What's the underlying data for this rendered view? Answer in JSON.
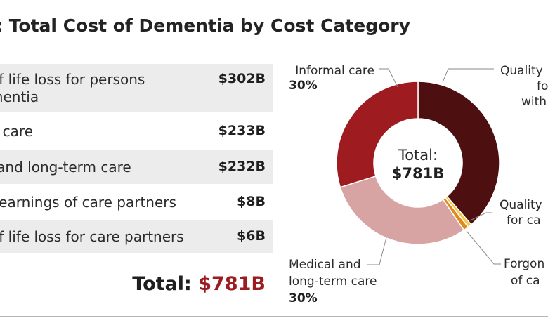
{
  "title": ": Total Cost of Dementia by Cost Category",
  "colors": {
    "quality_life_persons": "#4e0f10",
    "quality_life_partners": "#f4c84a",
    "forgone_earnings": "#e08a1e",
    "medical_longterm": "#d8a3a3",
    "informal_care": "#9e1b1f",
    "total_accent": "#9b1d20"
  },
  "table": {
    "rows": [
      {
        "label_lines": [
          "ty of life loss for persons",
          "dementia"
        ],
        "value": "$302B"
      },
      {
        "label_lines": [
          "mal care"
        ],
        "value": "$233B"
      },
      {
        "label_lines": [
          "cal and long-term care"
        ],
        "value": "$232B"
      },
      {
        "label_lines": [
          "me earnings of care partners"
        ],
        "value": "$8B"
      },
      {
        "label_lines": [
          "ty of life loss for care partners"
        ],
        "value": "$6B"
      }
    ],
    "total_prefix": "Total:",
    "total_value": "$781B"
  },
  "donut": {
    "center_label": "Total:",
    "center_value": "$781B",
    "callouts": [
      {
        "lines": [
          "Informal care"
        ],
        "pct": "30%"
      },
      {
        "lines": [
          "Quality",
          "fo",
          "with"
        ],
        "pct": ""
      },
      {
        "lines": [
          "Quality",
          "for ca"
        ],
        "pct": ""
      },
      {
        "lines": [
          "Forgon",
          "of ca"
        ],
        "pct": ""
      },
      {
        "lines": [
          "Medical and",
          "long-term care"
        ],
        "pct": "30%"
      }
    ]
  },
  "chart_data": {
    "type": "pie",
    "title": ": Total Cost of Dementia by Cost Category",
    "unit": "$B",
    "total": 781,
    "categories": [
      "Quality of life loss for persons with dementia",
      "Quality of life loss for care partners",
      "Forgone earnings of care partners",
      "Medical and long-term care",
      "Informal care"
    ],
    "values": [
      302,
      6,
      8,
      232,
      233
    ],
    "percent_labels": {
      "Informal care": "30%",
      "Medical and long-term care": "30%"
    },
    "legend": "callouts"
  }
}
